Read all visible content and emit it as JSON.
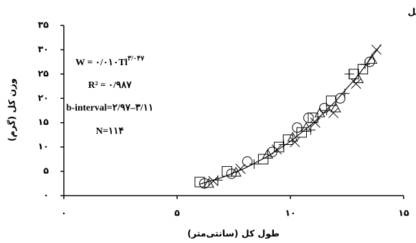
{
  "chart_data": {
    "type": "scatter",
    "title": "جنس نر نهر زرین گل",
    "x_label": "طول کل (سانتی‌متر)",
    "y_label": "وزن کل (گرم)",
    "annotations": {
      "equation": "W = ۰/۰۱۰Tl",
      "exponent": "۳/۰۴۷",
      "r2": "R² = ۰/۹۸۷",
      "interval": "b-interval=۲/۹۷–۳/۱۱",
      "n": "N=۱۱۴"
    },
    "xlim": [
      0,
      15
    ],
    "ylim": [
      0,
      35
    ],
    "xticks": [
      {
        "value": 0,
        "label": "۰"
      },
      {
        "value": 5,
        "label": "۵"
      },
      {
        "value": 10,
        "label": "۱۰"
      },
      {
        "value": 15,
        "label": "۱۵"
      }
    ],
    "yticks": [
      {
        "value": 0,
        "label": "۰"
      },
      {
        "value": 5,
        "label": "۵"
      },
      {
        "value": 10,
        "label": "۱۰"
      },
      {
        "value": 15,
        "label": "۱۵"
      },
      {
        "value": 20,
        "label": "۲۰"
      },
      {
        "value": 25,
        "label": "۲۵"
      },
      {
        "value": 30,
        "label": "۳۰"
      },
      {
        "value": 35,
        "label": "۳۵"
      }
    ],
    "series": [
      {
        "marker": "circle",
        "color": "#000000",
        "x": [
          6.2,
          7.4,
          8.1,
          9.2,
          10.3,
          10.8,
          11.5,
          12.2,
          13.5
        ],
        "values": [
          2.5,
          4.5,
          7,
          9,
          14,
          16,
          18,
          20,
          27.5
        ]
      },
      {
        "marker": "square",
        "color": "#000000",
        "x": [
          6.0,
          7.2,
          8.8,
          9.5,
          9.9,
          10.5,
          11.0,
          11.8,
          12.8,
          13.2
        ],
        "values": [
          2.8,
          5,
          7.5,
          10,
          11.5,
          13,
          16,
          19.5,
          25,
          26
        ]
      },
      {
        "marker": "triangle",
        "color": "#000000",
        "x": [
          6.4,
          7.6,
          9.0,
          10.1,
          10.7,
          11.3,
          12.0,
          13.0,
          13.6
        ],
        "values": [
          2.5,
          4.8,
          8.5,
          12,
          14,
          17,
          18,
          24,
          28
        ]
      },
      {
        "marker": "x",
        "color": "#000000",
        "x": [
          6.6,
          7.8,
          9.4,
          10.2,
          11.1,
          11.9,
          12.9,
          13.8
        ],
        "values": [
          3,
          5.5,
          9.5,
          11,
          15,
          17,
          23,
          30
        ]
      },
      {
        "marker": "plus",
        "color": "#000000",
        "x": [
          6.8,
          8.4,
          9.7,
          10.9,
          11.6,
          12.4,
          12.6,
          13.3
        ],
        "values": [
          3.2,
          6.5,
          10.5,
          13.5,
          17.5,
          21,
          25,
          27
        ]
      },
      {
        "marker": "line",
        "color": "#000000",
        "x": [
          6,
          7,
          8,
          9,
          10,
          11,
          12,
          13,
          14
        ],
        "values": [
          2.35,
          3.76,
          5.65,
          8.08,
          11.14,
          14.89,
          19.42,
          24.79,
          31.06
        ]
      }
    ]
  }
}
